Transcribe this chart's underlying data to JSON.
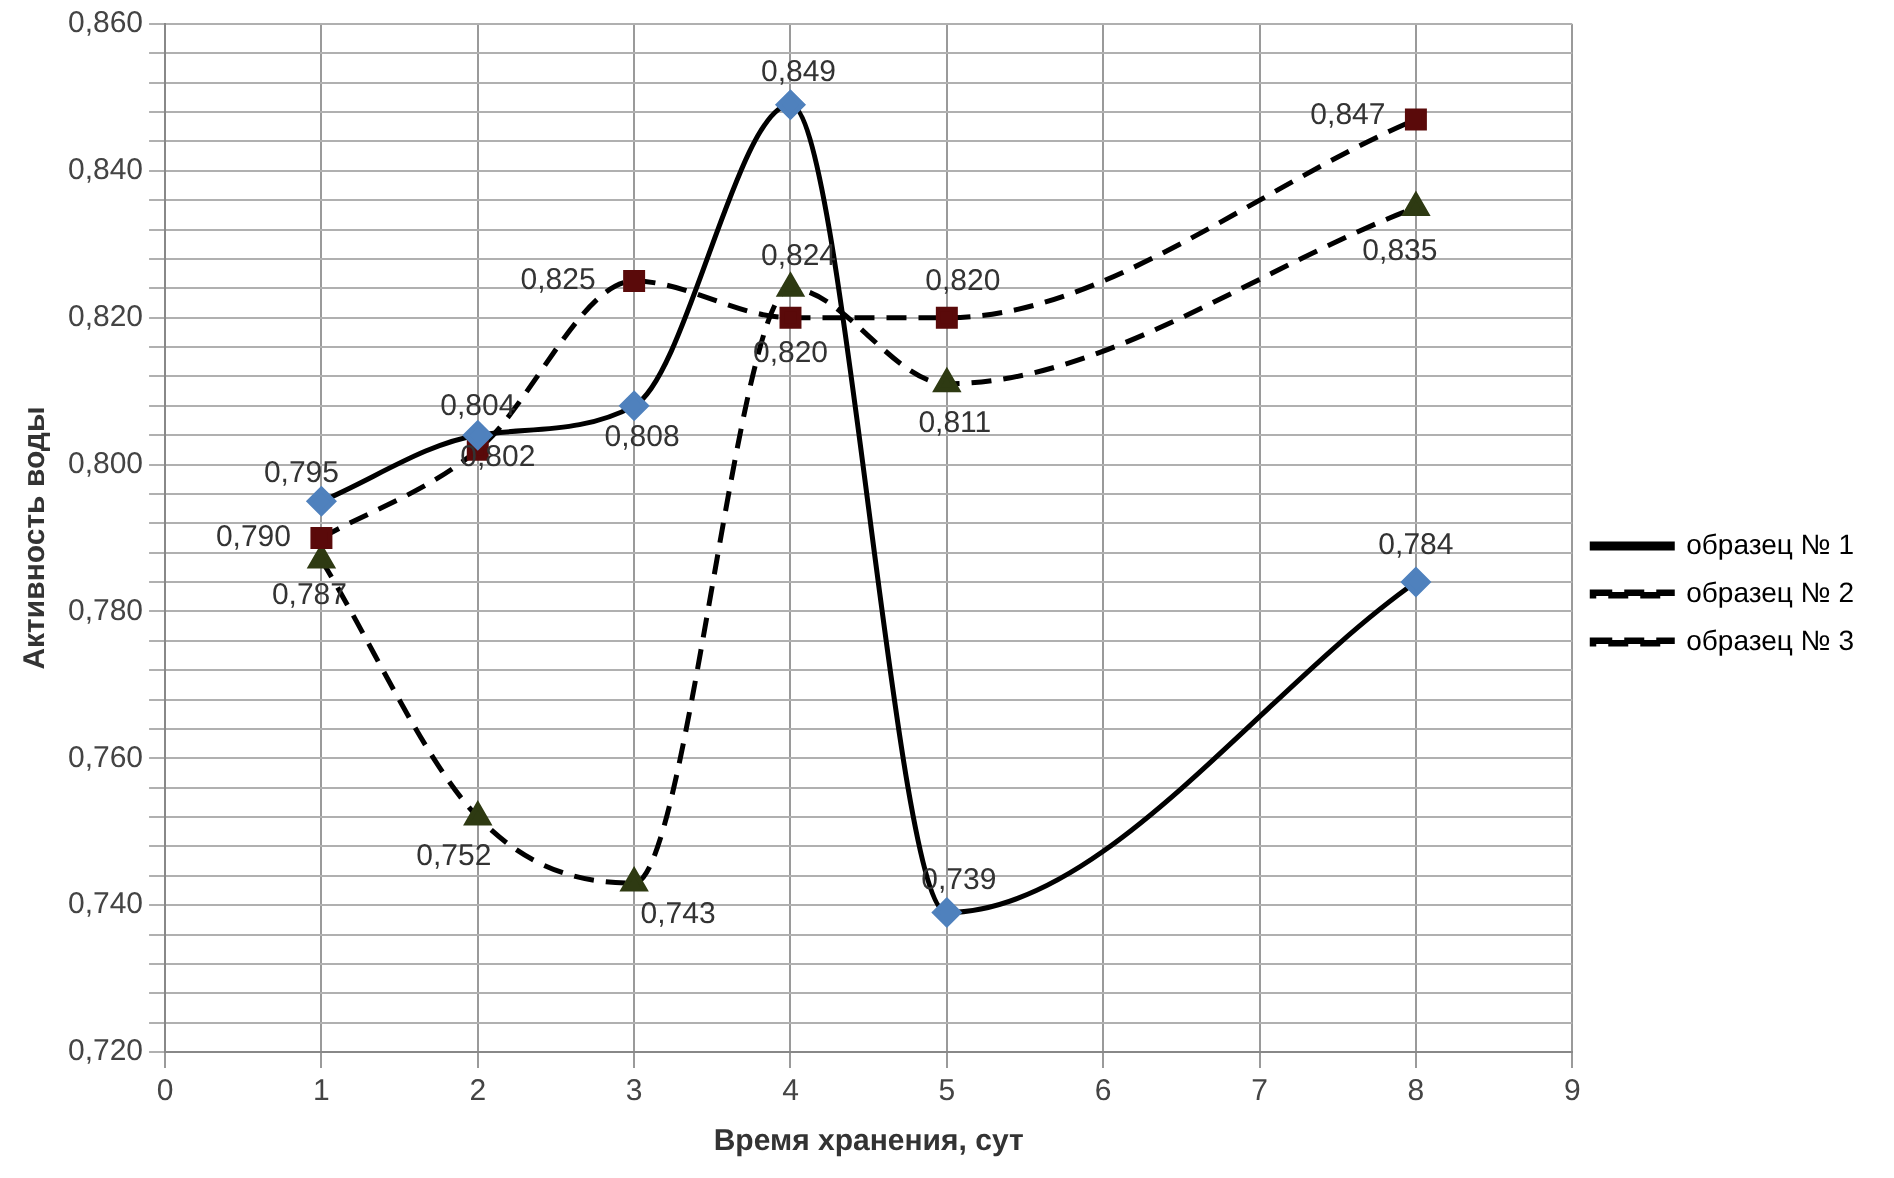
{
  "chart_data": {
    "type": "line",
    "xlabel": "Время хранения, сут",
    "ylabel": "Активность воды",
    "x": [
      1,
      2,
      3,
      4,
      5,
      8
    ],
    "series": [
      {
        "name": "образец № 1",
        "color": "#4f81bd",
        "marker": "diamond",
        "line_style": "solid",
        "values": [
          0.795,
          0.804,
          0.808,
          0.849,
          0.739,
          0.784
        ],
        "value_labels": [
          "0,795",
          "0,804",
          "0,808",
          "0,849",
          "0,739",
          "0,784"
        ]
      },
      {
        "name": "образец № 2",
        "color": "#5a0a0a",
        "marker": "square",
        "line_style": "dashed",
        "values": [
          0.79,
          0.802,
          0.825,
          0.82,
          0.82,
          0.847
        ],
        "value_labels": [
          "0,790",
          "0,802",
          "0,825",
          "0,820",
          "0,820",
          "0,847"
        ]
      },
      {
        "name": "образец № 3",
        "color": "#2e3a12",
        "marker": "triangle",
        "line_style": "dashed",
        "values": [
          0.787,
          0.752,
          0.743,
          0.824,
          0.811,
          0.835
        ],
        "value_labels": [
          "0,787",
          "0,752",
          "0,743",
          "0,824",
          "0,811",
          "0,835"
        ]
      }
    ],
    "xlim": [
      0,
      9
    ],
    "xticks": [
      0,
      1,
      2,
      3,
      4,
      5,
      6,
      7,
      8,
      9
    ],
    "ylim": [
      0.72,
      0.86
    ],
    "yticks": [
      {
        "value": 0.72,
        "label": "0,720"
      },
      {
        "value": 0.724,
        "label": null
      },
      {
        "value": 0.728,
        "label": null
      },
      {
        "value": 0.732,
        "label": null
      },
      {
        "value": 0.736,
        "label": null
      },
      {
        "value": 0.74,
        "label": "0,740"
      },
      {
        "value": 0.744,
        "label": null
      },
      {
        "value": 0.748,
        "label": null
      },
      {
        "value": 0.752,
        "label": null
      },
      {
        "value": 0.756,
        "label": null
      },
      {
        "value": 0.76,
        "label": "0,760"
      },
      {
        "value": 0.764,
        "label": null
      },
      {
        "value": 0.768,
        "label": null
      },
      {
        "value": 0.772,
        "label": null
      },
      {
        "value": 0.776,
        "label": null
      },
      {
        "value": 0.78,
        "label": "0,780"
      },
      {
        "value": 0.784,
        "label": null
      },
      {
        "value": 0.788,
        "label": null
      },
      {
        "value": 0.792,
        "label": null
      },
      {
        "value": 0.796,
        "label": null
      },
      {
        "value": 0.8,
        "label": "0,800"
      },
      {
        "value": 0.804,
        "label": null
      },
      {
        "value": 0.808,
        "label": null
      },
      {
        "value": 0.812,
        "label": null
      },
      {
        "value": 0.816,
        "label": null
      },
      {
        "value": 0.82,
        "label": "0,820"
      },
      {
        "value": 0.824,
        "label": null
      },
      {
        "value": 0.828,
        "label": null
      },
      {
        "value": 0.832,
        "label": null
      },
      {
        "value": 0.836,
        "label": null
      },
      {
        "value": 0.84,
        "label": "0,840"
      },
      {
        "value": 0.844,
        "label": null
      },
      {
        "value": 0.848,
        "label": null
      },
      {
        "value": 0.852,
        "label": null
      },
      {
        "value": 0.856,
        "label": null
      },
      {
        "value": 0.86,
        "label": "0,860"
      }
    ],
    "grid": true,
    "legend": "right"
  }
}
